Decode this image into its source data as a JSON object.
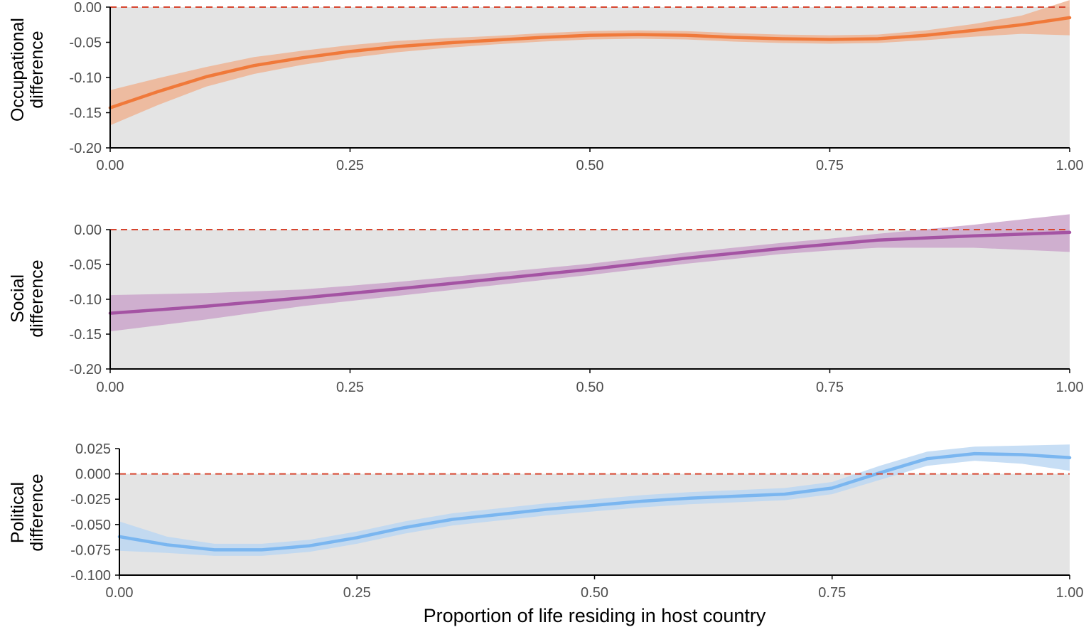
{
  "chart_data": [
    {
      "type": "line",
      "ylabel": [
        "Occupational",
        "difference"
      ],
      "ylim": [
        -0.2,
        0.0
      ],
      "xlim": [
        0,
        1
      ],
      "yticks": [
        "0.00",
        "-0.05",
        "-0.10",
        "-0.15",
        "-0.20"
      ],
      "ytick_values": [
        0.0,
        -0.05,
        -0.1,
        -0.15,
        -0.2
      ],
      "xticks": [
        "0.00",
        "0.25",
        "0.50",
        "0.75",
        "1.00"
      ],
      "xtick_values": [
        0,
        0.25,
        0.5,
        0.75,
        1.0
      ],
      "reference_line": 0,
      "series": [
        {
          "color": "#F0793A",
          "band_color": "#EFB08F",
          "x": [
            0.0,
            0.05,
            0.1,
            0.15,
            0.2,
            0.25,
            0.3,
            0.35,
            0.4,
            0.45,
            0.5,
            0.55,
            0.6,
            0.65,
            0.7,
            0.75,
            0.8,
            0.85,
            0.9,
            0.95,
            1.0
          ],
          "y": [
            -0.143,
            -0.12,
            -0.099,
            -0.083,
            -0.072,
            -0.063,
            -0.056,
            -0.051,
            -0.047,
            -0.043,
            -0.04,
            -0.039,
            -0.04,
            -0.043,
            -0.045,
            -0.046,
            -0.045,
            -0.04,
            -0.033,
            -0.025,
            -0.015
          ],
          "lower": [
            -0.168,
            -0.139,
            -0.113,
            -0.095,
            -0.082,
            -0.072,
            -0.064,
            -0.058,
            -0.053,
            -0.049,
            -0.046,
            -0.045,
            -0.046,
            -0.049,
            -0.051,
            -0.052,
            -0.051,
            -0.047,
            -0.042,
            -0.038,
            -0.04
          ],
          "upper": [
            -0.118,
            -0.101,
            -0.085,
            -0.071,
            -0.062,
            -0.054,
            -0.048,
            -0.044,
            -0.041,
            -0.037,
            -0.034,
            -0.033,
            -0.034,
            -0.037,
            -0.039,
            -0.04,
            -0.039,
            -0.033,
            -0.024,
            -0.012,
            0.01
          ]
        }
      ]
    },
    {
      "type": "line",
      "ylabel": [
        "Social",
        "difference"
      ],
      "ylim": [
        -0.2,
        0.0
      ],
      "xlim": [
        0,
        1
      ],
      "yticks": [
        "0.00",
        "-0.05",
        "-0.10",
        "-0.15",
        "-0.20"
      ],
      "ytick_values": [
        0.0,
        -0.05,
        -0.1,
        -0.15,
        -0.2
      ],
      "xticks": [
        "0.00",
        "0.25",
        "0.50",
        "0.75",
        "1.00"
      ],
      "xtick_values": [
        0,
        0.25,
        0.5,
        0.75,
        1.0
      ],
      "reference_line": 0,
      "series": [
        {
          "color": "#A453A3",
          "band_color": "#C9A1C9",
          "x": [
            0.0,
            0.1,
            0.2,
            0.3,
            0.4,
            0.5,
            0.6,
            0.7,
            0.75,
            0.8,
            0.9,
            1.0
          ],
          "y": [
            -0.12,
            -0.11,
            -0.098,
            -0.085,
            -0.071,
            -0.057,
            -0.041,
            -0.027,
            -0.021,
            -0.015,
            -0.009,
            -0.004
          ],
          "lower": [
            -0.146,
            -0.129,
            -0.11,
            -0.095,
            -0.08,
            -0.065,
            -0.049,
            -0.035,
            -0.03,
            -0.026,
            -0.026,
            -0.032
          ],
          "upper": [
            -0.094,
            -0.091,
            -0.086,
            -0.075,
            -0.062,
            -0.049,
            -0.033,
            -0.019,
            -0.013,
            -0.006,
            0.007,
            0.022
          ]
        }
      ]
    },
    {
      "type": "line",
      "ylabel": [
        "Political",
        "difference"
      ],
      "xlabel": "Proportion of life residing in host country",
      "ylim": [
        -0.1,
        0.025
      ],
      "xlim": [
        0,
        1
      ],
      "yticks": [
        "0.025",
        "0.000",
        "-0.025",
        "-0.050",
        "-0.075",
        "-0.100"
      ],
      "ytick_values": [
        0.025,
        0.0,
        -0.025,
        -0.05,
        -0.075,
        -0.1
      ],
      "xticks": [
        "0.00",
        "0.25",
        "0.50",
        "0.75",
        "1.00"
      ],
      "xtick_values": [
        0,
        0.25,
        0.5,
        0.75,
        1.0
      ],
      "reference_line": 0,
      "series": [
        {
          "color": "#7AB6F0",
          "band_color": "#B9D6F2",
          "x": [
            0.0,
            0.05,
            0.1,
            0.15,
            0.2,
            0.25,
            0.3,
            0.35,
            0.4,
            0.45,
            0.5,
            0.55,
            0.6,
            0.65,
            0.7,
            0.75,
            0.8,
            0.85,
            0.9,
            0.95,
            1.0
          ],
          "y": [
            -0.062,
            -0.07,
            -0.075,
            -0.075,
            -0.071,
            -0.063,
            -0.053,
            -0.045,
            -0.04,
            -0.035,
            -0.031,
            -0.027,
            -0.024,
            -0.022,
            -0.02,
            -0.014,
            0.001,
            0.015,
            0.02,
            0.019,
            0.016
          ],
          "lower": [
            -0.076,
            -0.078,
            -0.081,
            -0.081,
            -0.077,
            -0.069,
            -0.059,
            -0.051,
            -0.046,
            -0.041,
            -0.037,
            -0.033,
            -0.03,
            -0.028,
            -0.026,
            -0.02,
            -0.006,
            0.008,
            0.013,
            0.01,
            0.003
          ],
          "upper": [
            -0.047,
            -0.062,
            -0.069,
            -0.069,
            -0.065,
            -0.057,
            -0.047,
            -0.039,
            -0.034,
            -0.029,
            -0.025,
            -0.021,
            -0.018,
            -0.016,
            -0.014,
            -0.008,
            0.008,
            0.022,
            0.027,
            0.028,
            0.029
          ]
        }
      ]
    }
  ]
}
